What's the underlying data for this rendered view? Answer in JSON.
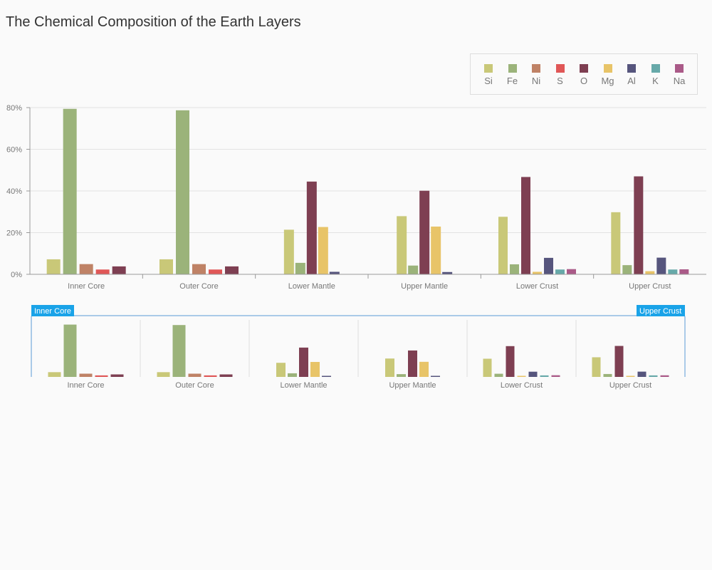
{
  "title": "The Chemical Composition of the Earth Layers",
  "chart_data": {
    "type": "bar",
    "categories": [
      "Inner Core",
      "Outer Core",
      "Lower Mantle",
      "Upper Mantle",
      "Lower Crust",
      "Upper Crust"
    ],
    "series": [
      {
        "name": "Si",
        "color": "#c9c878",
        "values": [
          7.2,
          7.2,
          21.4,
          27.9,
          27.6,
          29.8
        ]
      },
      {
        "name": "Fe",
        "color": "#9bb37a",
        "values": [
          79.4,
          78.7,
          5.5,
          4.2,
          4.8,
          4.4
        ]
      },
      {
        "name": "Ni",
        "color": "#bf8266",
        "values": [
          4.9,
          4.9,
          0,
          0,
          0,
          0
        ]
      },
      {
        "name": "S",
        "color": "#e05757",
        "values": [
          2.3,
          2.3,
          0,
          0,
          0,
          0
        ]
      },
      {
        "name": "O",
        "color": "#7e3f52",
        "values": [
          3.8,
          3.8,
          44.5,
          40.1,
          46.7,
          47.0
        ]
      },
      {
        "name": "Mg",
        "color": "#e8c468",
        "values": [
          0,
          0,
          22.7,
          22.9,
          1.2,
          1.5
        ]
      },
      {
        "name": "Al",
        "color": "#56557d",
        "values": [
          0,
          0,
          1.2,
          1.1,
          7.9,
          8.0
        ]
      },
      {
        "name": "K",
        "color": "#67a9a9",
        "values": [
          0,
          0,
          0,
          0,
          2.3,
          2.3
        ]
      },
      {
        "name": "Na",
        "color": "#aa5a88",
        "values": [
          0,
          0,
          0,
          0,
          2.5,
          2.4
        ]
      }
    ],
    "y_ticks": [
      "0%",
      "20%",
      "40%",
      "60%",
      "80%"
    ],
    "ylim": [
      0,
      80
    ],
    "grid": true,
    "legend_position": "top-right",
    "navigator": {
      "start_label": "Inner Core",
      "end_label": "Upper Crust"
    }
  }
}
